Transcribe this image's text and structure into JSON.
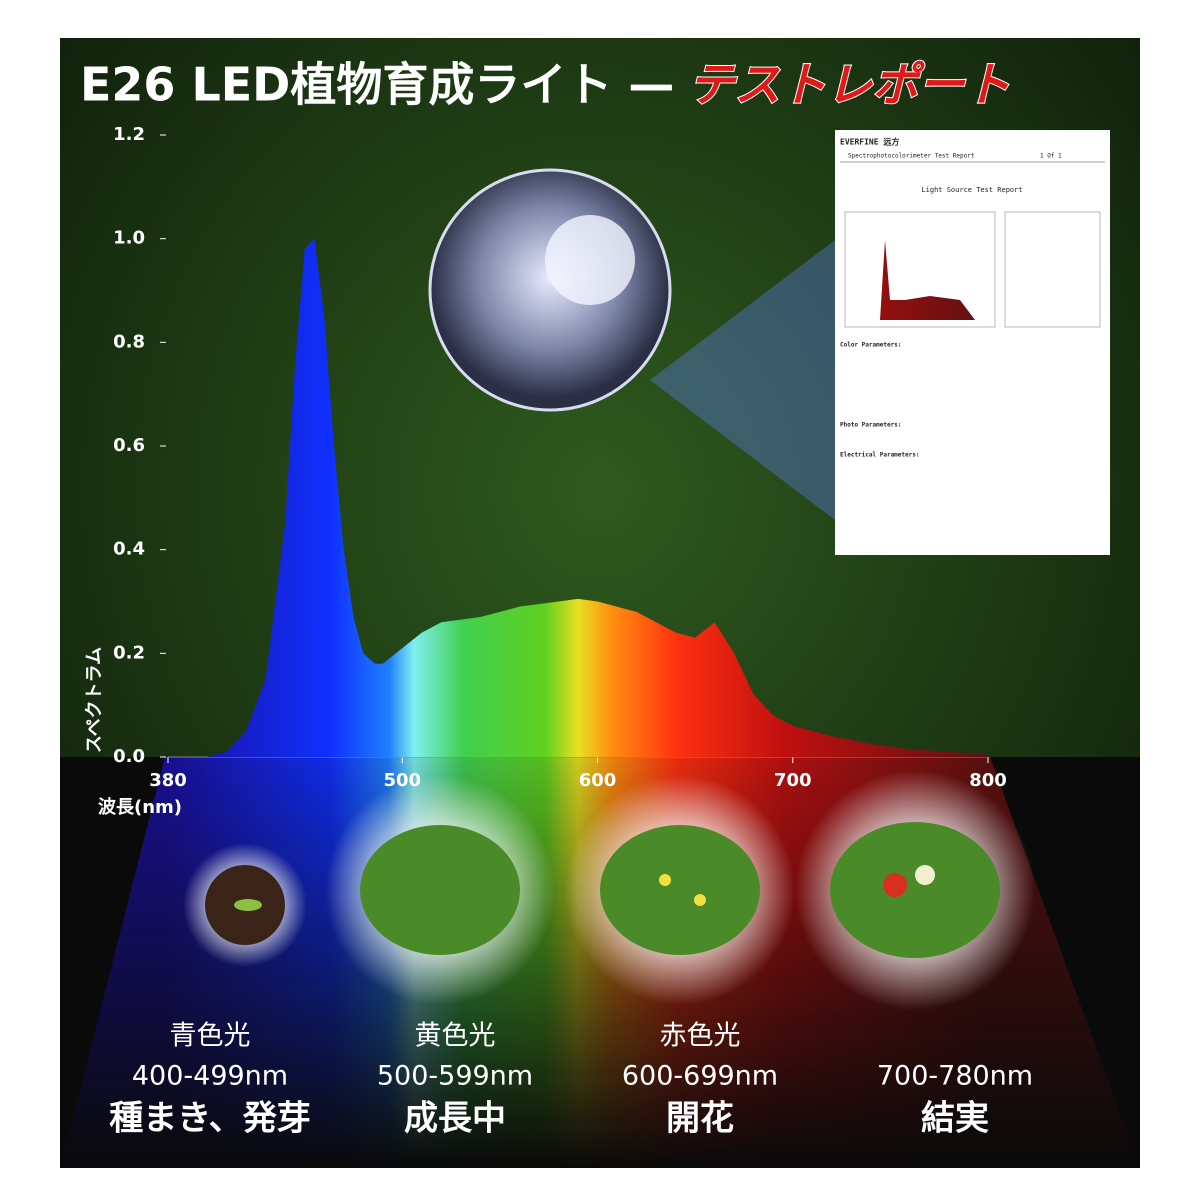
{
  "chart_data": {
    "type": "area",
    "title": "E26 LED植物育成ライト —",
    "title_highlight": "テストレポート",
    "y_label": "スペクトラム",
    "x_label": "波長(nm)",
    "x": [
      400,
      410,
      420,
      430,
      440,
      445,
      450,
      455,
      460,
      465,
      470,
      475,
      480,
      486,
      490,
      500,
      510,
      520,
      540,
      560,
      580,
      590,
      600,
      620,
      640,
      650,
      660,
      670,
      680,
      690,
      700,
      720,
      740,
      760,
      780,
      800
    ],
    "values": [
      0.0,
      0.01,
      0.05,
      0.15,
      0.45,
      0.75,
      0.98,
      1.0,
      0.85,
      0.6,
      0.4,
      0.27,
      0.2,
      0.18,
      0.18,
      0.21,
      0.24,
      0.26,
      0.27,
      0.29,
      0.3,
      0.305,
      0.3,
      0.28,
      0.24,
      0.23,
      0.26,
      0.2,
      0.12,
      0.08,
      0.06,
      0.04,
      0.025,
      0.015,
      0.01,
      0.005
    ],
    "xlim": [
      380,
      800
    ],
    "xticks": [
      380,
      500,
      600,
      700,
      800
    ],
    "ylim": [
      0,
      1.2
    ],
    "yticks": [
      {
        "value": 0,
        "label": "0.0"
      },
      0.2,
      0.4,
      0.6,
      0.8,
      {
        "value": 1,
        "label": "1.0"
      },
      1.2
    ]
  },
  "report": {
    "brand": "EVERFINE 远方",
    "header": "Spectrophotocolorimeter Test Report",
    "page": "1 Of 1",
    "title": "Light Source Test Report",
    "sections": [
      "Color Parameters:",
      "Photo Parameters:",
      "Electrical Parameters:"
    ]
  },
  "stages": [
    {
      "color_name": "青色光",
      "range": "400-499nm",
      "stage": "種まき、発芽"
    },
    {
      "color_name": "黄色光",
      "range": "500-599nm",
      "stage": "成長中"
    },
    {
      "color_name": "赤色光",
      "range": "600-699nm",
      "stage": "開花"
    },
    {
      "range": "700-780nm",
      "stage": "結実"
    }
  ]
}
